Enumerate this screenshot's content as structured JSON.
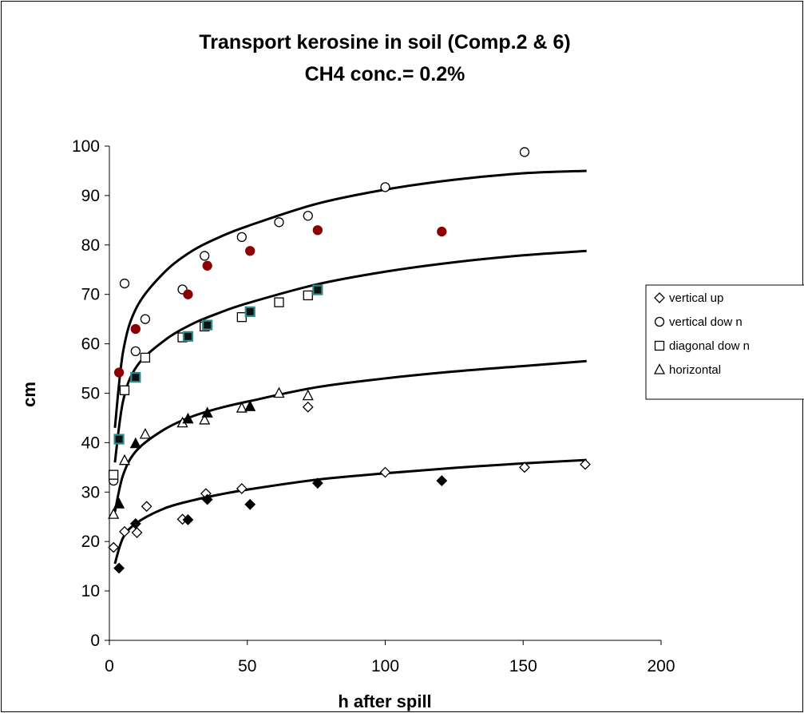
{
  "chart_data": {
    "type": "scatter",
    "title": "Transport kerosine in soil (Comp.2 & 6)",
    "subtitle": "CH4 conc.= 0.2%",
    "xlabel": "h after spill",
    "ylabel": "cm",
    "xlim": [
      0,
      200
    ],
    "ylim": [
      0,
      100
    ],
    "xticks": [
      0,
      50,
      100,
      150,
      200
    ],
    "yticks": [
      0,
      10,
      20,
      30,
      40,
      50,
      60,
      70,
      80,
      90,
      100
    ],
    "grid": false,
    "legend_position": "right",
    "legend": [
      "vertical up",
      "vertical dow n",
      "diagonal dow n",
      "horizontal"
    ],
    "series": [
      {
        "name": "vertical up",
        "marker": "diamond",
        "fill": "#ffffff",
        "stroke": "#000000",
        "x": [
          1.5,
          5.5,
          10,
          13.5,
          26.5,
          35,
          48,
          72,
          100,
          150.5,
          172.5
        ],
        "y": [
          18.8,
          22,
          21.8,
          27.1,
          24.5,
          29.7,
          30.7,
          47.2,
          34,
          35,
          35.6
        ]
      },
      {
        "marker": "diamond",
        "fill": "#000000",
        "stroke": "#000000",
        "x": [
          3.5,
          9.5,
          28.5,
          35.5,
          51,
          75.5,
          120.5
        ],
        "y": [
          14.6,
          23.6,
          24.4,
          28.5,
          27.5,
          31.8,
          32.3
        ]
      },
      {
        "name": "vertical dow n",
        "marker": "circle",
        "fill": "#ffffff",
        "stroke": "#000000",
        "x": [
          1.5,
          5.5,
          9.5,
          13,
          26.5,
          34.5,
          48,
          61.5,
          72,
          100,
          150.5
        ],
        "y": [
          32.3,
          72.2,
          58.5,
          65,
          71,
          77.8,
          81.6,
          84.6,
          85.9,
          91.7,
          98.8
        ]
      },
      {
        "marker": "circle",
        "fill": "#8b0000",
        "stroke": "#8b0000",
        "x": [
          3.5,
          9.5,
          28.5,
          35.5,
          51,
          75.5,
          120.5
        ],
        "y": [
          54.2,
          63,
          70,
          75.8,
          78.8,
          83,
          82.7
        ]
      },
      {
        "name": "diagonal dow n",
        "marker": "square",
        "fill": "#ffffff",
        "stroke": "#000000",
        "x": [
          1.5,
          5.5,
          9.5,
          13,
          26.5,
          34.5,
          48,
          61.5,
          72
        ],
        "y": [
          33.5,
          50.6,
          53.3,
          57.2,
          61.3,
          63.5,
          65.4,
          68.4,
          69.8
        ]
      },
      {
        "marker": "square",
        "fill": "#111111",
        "stroke": "#2e8b8b",
        "x": [
          3.5,
          9.5,
          28.5,
          35.5,
          51,
          75.5
        ],
        "y": [
          40.7,
          53.2,
          61.5,
          63.8,
          66.5,
          70.9
        ]
      },
      {
        "name": "horizontal",
        "marker": "triangle",
        "fill": "#ffffff",
        "stroke": "#000000",
        "x": [
          1.5,
          5.5,
          13,
          26.5,
          34.5,
          48,
          61.5,
          72
        ],
        "y": [
          25.5,
          36.4,
          41.7,
          44,
          44.6,
          47,
          50,
          49.5
        ]
      },
      {
        "marker": "triangle",
        "fill": "#000000",
        "stroke": "#000000",
        "x": [
          3.5,
          9.5,
          28.5,
          35.5,
          51
        ],
        "y": [
          27.6,
          39.8,
          44.8,
          46,
          47.3
        ]
      }
    ],
    "trendlines": [
      {
        "x": [
          2,
          5,
          10,
          20,
          30,
          40,
          50,
          75,
          100,
          125,
          150,
          173
        ],
        "y": [
          43,
          58.5,
          67.5,
          74.5,
          78.8,
          81.6,
          83.8,
          88.3,
          91.2,
          93.2,
          94.5,
          95
        ]
      },
      {
        "x": [
          2,
          5,
          10,
          20,
          30,
          40,
          50,
          75,
          100,
          125,
          150,
          173
        ],
        "y": [
          36,
          48.5,
          55.5,
          60.7,
          64,
          66.3,
          68.2,
          72,
          74.6,
          76.5,
          77.9,
          78.8
        ]
      },
      {
        "x": [
          2,
          5,
          10,
          20,
          30,
          40,
          50,
          75,
          100,
          125,
          150,
          173
        ],
        "y": [
          26,
          33.5,
          38.5,
          42.7,
          45.3,
          47,
          48.3,
          51.2,
          53,
          54.4,
          55.5,
          56.5
        ]
      },
      {
        "x": [
          2,
          5,
          10,
          20,
          30,
          40,
          50,
          75,
          100,
          125,
          150,
          173
        ],
        "y": [
          15.5,
          20.8,
          23.8,
          26.7,
          28.3,
          29.5,
          30.5,
          32.5,
          33.8,
          34.9,
          35.8,
          36.5
        ]
      }
    ]
  }
}
